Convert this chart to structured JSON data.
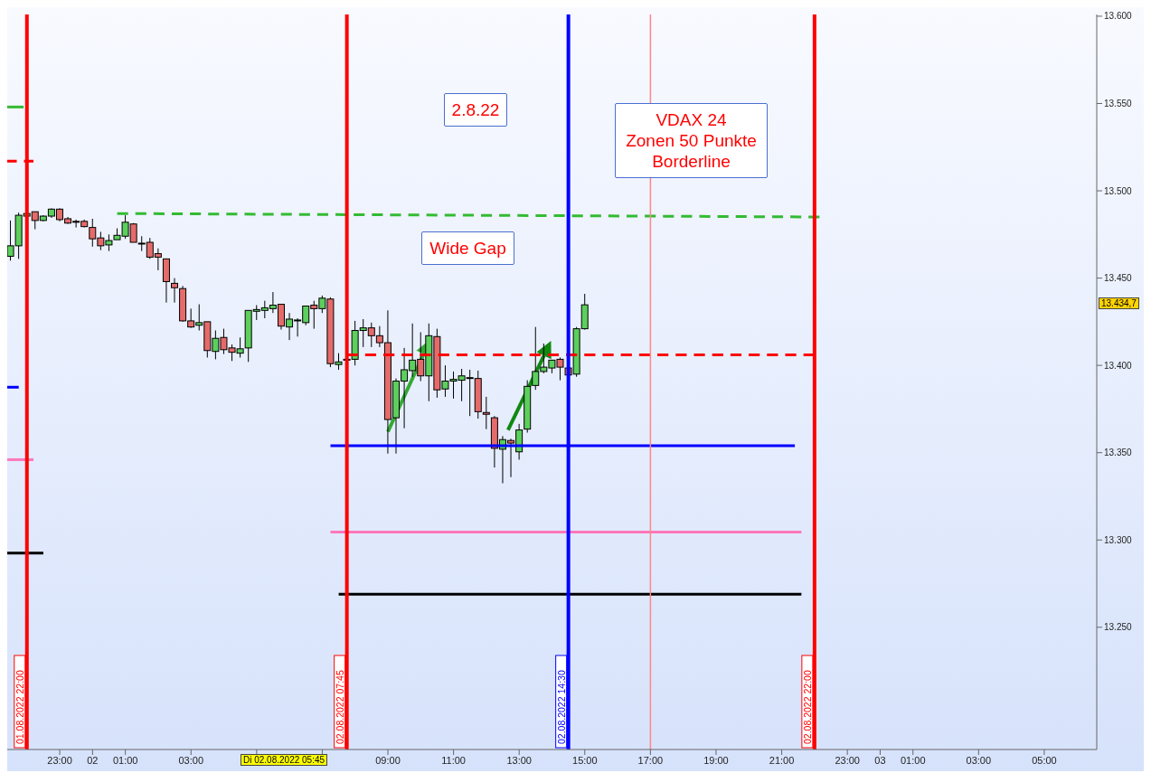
{
  "chart_data": {
    "type": "candlestick",
    "x": [
      "2022-08-01T21:30",
      "2022-08-01T21:45",
      "2022-08-01T22:00",
      "2022-08-01T22:15",
      "2022-08-01T22:30",
      "2022-08-01T22:45",
      "2022-08-01T23:00",
      "2022-08-01T23:15",
      "2022-08-01T23:30",
      "2022-08-01T23:45",
      "2022-08-02T00:00",
      "2022-08-02T00:15",
      "2022-08-02T00:30",
      "2022-08-02T00:45",
      "2022-08-02T01:00",
      "2022-08-02T01:15",
      "2022-08-02T01:30",
      "2022-08-02T01:45",
      "2022-08-02T02:00",
      "2022-08-02T02:15",
      "2022-08-02T02:30",
      "2022-08-02T02:45",
      "2022-08-02T03:00",
      "2022-08-02T03:15",
      "2022-08-02T03:30",
      "2022-08-02T03:45",
      "2022-08-02T04:00",
      "2022-08-02T04:15",
      "2022-08-02T04:30",
      "2022-08-02T04:45",
      "2022-08-02T05:00",
      "2022-08-02T05:15",
      "2022-08-02T05:30",
      "2022-08-02T05:45",
      "2022-08-02T06:00",
      "2022-08-02T06:15",
      "2022-08-02T06:30",
      "2022-08-02T06:45",
      "2022-08-02T07:00",
      "2022-08-02T07:15",
      "2022-08-02T07:30",
      "2022-08-02T07:45",
      "2022-08-02T08:00",
      "2022-08-02T08:15",
      "2022-08-02T08:30",
      "2022-08-02T08:45",
      "2022-08-02T09:00",
      "2022-08-02T09:15",
      "2022-08-02T09:30",
      "2022-08-02T09:45",
      "2022-08-02T10:00",
      "2022-08-02T10:15",
      "2022-08-02T10:30",
      "2022-08-02T10:45",
      "2022-08-02T11:00",
      "2022-08-02T11:15",
      "2022-08-02T11:30",
      "2022-08-02T11:45",
      "2022-08-02T12:00",
      "2022-08-02T12:15",
      "2022-08-02T12:30",
      "2022-08-02T12:45",
      "2022-08-02T13:00",
      "2022-08-02T13:15",
      "2022-08-02T13:30",
      "2022-08-02T13:45",
      "2022-08-02T14:00",
      "2022-08-02T14:15",
      "2022-08-02T14:30",
      "2022-08-02T14:45",
      "2022-08-02T15:00"
    ],
    "ohlc": [
      [
        13462.5,
        13483,
        13460,
        13468.5
      ],
      [
        13468.5,
        13487.5,
        13461,
        13486
      ],
      [
        13485.5,
        13487.5,
        13485,
        13487
      ],
      [
        13488,
        13488,
        13478,
        13483
      ],
      [
        13483,
        13486,
        13482.5,
        13485.5
      ],
      [
        13485.5,
        13490,
        13484.5,
        13489.5
      ],
      [
        13489.5,
        13490,
        13482.5,
        13483.5
      ],
      [
        13484,
        13485,
        13481,
        13481.5
      ],
      [
        13482.5,
        13483.5,
        13479,
        13482
      ],
      [
        13482.5,
        13483.5,
        13479,
        13479.5
      ],
      [
        13479,
        13484,
        13468,
        13472.5
      ],
      [
        13473,
        13476.5,
        13466,
        13468.5
      ],
      [
        13469,
        13475,
        13465.5,
        13471.5
      ],
      [
        13472,
        13478.5,
        13472,
        13474.5
      ],
      [
        13474,
        13486,
        13472.5,
        13482
      ],
      [
        13481,
        13481.5,
        13470.5,
        13470.5
      ],
      [
        13470,
        13474,
        13465.5,
        13470
      ],
      [
        13470.5,
        13473,
        13461,
        13462
      ],
      [
        13464,
        13467,
        13454.5,
        13462
      ],
      [
        13461,
        13461,
        13436,
        13448
      ],
      [
        13447,
        13450,
        13436,
        13444.5
      ],
      [
        13444,
        13445.5,
        13425,
        13425.5
      ],
      [
        13425.5,
        13432.5,
        13421.5,
        13422
      ],
      [
        13423,
        13435,
        13420,
        13424.5
      ],
      [
        13425,
        13425,
        13404.5,
        13408.5
      ],
      [
        13408,
        13420,
        13403.5,
        13415.5
      ],
      [
        13416,
        13421,
        13406.5,
        13409
      ],
      [
        13410,
        13412,
        13402.5,
        13407.5
      ],
      [
        13407,
        13416,
        13404.5,
        13409.5
      ],
      [
        13410,
        13431.5,
        13402,
        13431.5
      ],
      [
        13431,
        13434.5,
        13426,
        13432
      ],
      [
        13431.5,
        13437,
        13427,
        13433
      ],
      [
        13432.5,
        13442,
        13430,
        13434.5
      ],
      [
        13435,
        13435,
        13420.5,
        13422.5
      ],
      [
        13422,
        13430,
        13414.5,
        13426.5
      ],
      [
        13426,
        13427,
        13416.5,
        13426
      ],
      [
        13424.5,
        13434,
        13423,
        13434
      ],
      [
        13434.5,
        13437,
        13421,
        13432.5
      ],
      [
        13432.5,
        13440,
        13430,
        13438.5
      ],
      [
        13438,
        13439,
        13399,
        13401
      ],
      [
        13400.5,
        13407,
        13397.5,
        13402
      ],
      [
        13403,
        13404,
        13402,
        13403.5
      ],
      [
        13403.5,
        13425.5,
        13400,
        13420
      ],
      [
        13420,
        13426.5,
        13410.5,
        13421.5
      ],
      [
        13421.5,
        13424.5,
        13410.5,
        13417
      ],
      [
        13417,
        13422.5,
        13410.5,
        13413
      ],
      [
        13413,
        13431.5,
        13349.5,
        13369
      ],
      [
        13370,
        13392.5,
        13349.5,
        13391
      ],
      [
        13391,
        13410,
        13364,
        13397.5
      ],
      [
        13397,
        13424,
        13393.5,
        13403
      ],
      [
        13403.5,
        13419,
        13391,
        13394
      ],
      [
        13394,
        13424,
        13379.5,
        13417
      ],
      [
        13416.5,
        13421,
        13381.5,
        13386
      ],
      [
        13386.5,
        13400,
        13382,
        13391
      ],
      [
        13391,
        13396.5,
        13381,
        13392
      ],
      [
        13391.5,
        13398,
        13379.5,
        13394
      ],
      [
        13393,
        13397.5,
        13371,
        13393
      ],
      [
        13392.5,
        13397,
        13369.5,
        13373.5
      ],
      [
        13373,
        13382,
        13363.5,
        13372
      ],
      [
        13370,
        13371,
        13341.5,
        13352.5
      ],
      [
        13352,
        13359.5,
        13332.5,
        13357.5
      ],
      [
        13357,
        13358,
        13336,
        13355.5
      ],
      [
        13350.5,
        13366.5,
        13346,
        13363
      ],
      [
        13363.5,
        13391.5,
        13361.5,
        13388
      ],
      [
        13388.5,
        13422,
        13386,
        13396.5
      ],
      [
        13396.5,
        13412.5,
        13395.5,
        13399
      ],
      [
        13398.5,
        13403,
        13395.5,
        13403
      ],
      [
        13403.5,
        13404.5,
        13391.5,
        13399
      ],
      [
        13398.5,
        13399,
        13394,
        13394.5
      ],
      [
        13395,
        13422,
        13393.5,
        13421
      ],
      [
        13421,
        13441,
        13420.5,
        13434.7
      ]
    ],
    "series": [
      {
        "type": "line",
        "color": "#33bb33",
        "line_style": "dashed",
        "x": [
          "2022-08-01T21:24",
          "2022-08-01T21:54"
        ],
        "values": [
          13548,
          13548
        ]
      },
      {
        "type": "line",
        "color": "#ff0000",
        "line_style": "dashed",
        "x": [
          "2022-08-01T21:24",
          "2022-08-01T22:12"
        ],
        "values": [
          13517,
          13517
        ]
      },
      {
        "type": "line",
        "color": "#0000ff",
        "line_style": "solid",
        "x": [
          "2022-08-01T21:24",
          "2022-08-01T21:45"
        ],
        "values": [
          13387.5,
          13387.5
        ]
      },
      {
        "type": "line",
        "color": "#ff77bb",
        "line_style": "solid",
        "x": [
          "2022-08-01T21:24",
          "2022-08-01T22:12"
        ],
        "values": [
          13346,
          13346
        ]
      },
      {
        "type": "line",
        "color": "#000000",
        "line_style": "solid",
        "x": [
          "2022-08-01T21:24",
          "2022-08-01T22:30"
        ],
        "values": [
          13292.5,
          13292.5
        ]
      },
      {
        "type": "line",
        "color": "#33bb33",
        "line_style": "dashed",
        "x": [
          "2022-08-02T00:45",
          "2022-08-02T22:09"
        ],
        "values": [
          13487,
          13485
        ]
      },
      {
        "type": "line",
        "color": "#ff0000",
        "line_style": "dashed",
        "x": [
          "2022-08-02T07:45",
          "2022-08-02T22:00"
        ],
        "values": [
          13406,
          13406
        ]
      },
      {
        "type": "line",
        "color": "#0000ff",
        "line_style": "solid",
        "x": [
          "2022-08-02T07:15",
          "2022-08-02T21:24"
        ],
        "values": [
          13354,
          13354
        ]
      },
      {
        "type": "line",
        "color": "#ff77bb",
        "line_style": "solid",
        "x": [
          "2022-08-02T07:15",
          "2022-08-02T21:36"
        ],
        "values": [
          13304.5,
          13304.5
        ]
      },
      {
        "type": "line",
        "color": "#000000",
        "line_style": "solid",
        "x": [
          "2022-08-02T07:30",
          "2022-08-02T21:36"
        ],
        "values": [
          13269,
          13269
        ]
      }
    ],
    "ref_lines": [
      {
        "axis": "x",
        "value": "2022-08-01T22:00",
        "label": "01.08.2022 22:00",
        "color": "#ff0000"
      },
      {
        "axis": "x",
        "value": "2022-08-02T07:45",
        "label": "02.08.2022 07:45",
        "color": "#ff0000"
      },
      {
        "axis": "x",
        "value": "2022-08-02T14:30",
        "label": "02.08.2022 14:30",
        "color": "#0000ff"
      },
      {
        "axis": "x",
        "value": "2022-08-02T22:00",
        "label": "02.08.2022 22:00",
        "color": "#ff0000"
      },
      {
        "axis": "x",
        "value": "2022-08-02T17:00",
        "color": "#ff8888"
      }
    ],
    "annotations": [
      "2.8.22",
      "Wide Gap",
      "VDAX 24\nZonen 50 Punkte\nBorderline",
      "Di 02.08.2022 05:45",
      "13.434,7"
    ],
    "xlim": [
      "2022-08-01T21:24",
      "2022-08-03T06:36"
    ],
    "xticks": [
      {
        "value": "2022-08-01T23:00",
        "label": "23:00"
      },
      {
        "value": "2022-08-02T00:00",
        "label": "02"
      },
      {
        "value": "2022-08-02T01:00",
        "label": "01:00"
      },
      {
        "value": "2022-08-02T03:00",
        "label": "03:00"
      },
      {
        "value": "2022-08-02T05:00",
        "label": null
      },
      {
        "value": "2022-08-02T07:00",
        "label": null
      },
      {
        "value": "2022-08-02T09:00",
        "label": "09:00"
      },
      {
        "value": "2022-08-02T11:00",
        "label": "11:00"
      },
      {
        "value": "2022-08-02T13:00",
        "label": "13:00"
      },
      {
        "value": "2022-08-02T15:00",
        "label": "15:00"
      },
      {
        "value": "2022-08-02T17:00",
        "label": "17:00"
      },
      {
        "value": "2022-08-02T19:00",
        "label": "19:00"
      },
      {
        "value": "2022-08-02T21:00",
        "label": "21:00"
      },
      {
        "value": "2022-08-02T23:00",
        "label": "23:00"
      },
      {
        "value": "2022-08-03T00:00",
        "label": "03"
      },
      {
        "value": "2022-08-03T01:00",
        "label": "01:00"
      },
      {
        "value": "2022-08-03T03:00",
        "label": "03:00"
      },
      {
        "value": "2022-08-03T05:00",
        "label": "05:00"
      }
    ],
    "ylim": [
      13180,
      13601
    ],
    "yticks": [
      {
        "value": 13250,
        "label": "13.250"
      },
      {
        "value": 13300,
        "label": "13.300"
      },
      {
        "value": 13350,
        "label": "13.350"
      },
      {
        "value": 13400,
        "label": "13.400"
      },
      {
        "value": 13450,
        "label": "13.450"
      },
      {
        "value": 13500,
        "label": "13.500"
      },
      {
        "value": 13550,
        "label": "13.550"
      },
      {
        "value": 13600,
        "label": "13.600"
      }
    ]
  }
}
